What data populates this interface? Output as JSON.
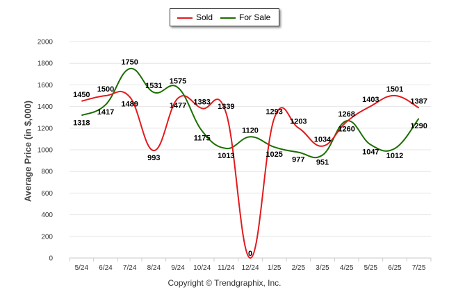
{
  "chart_data": {
    "type": "line",
    "ylabel": "Average Price (in $,000)",
    "xlabel": "",
    "ylim": [
      0,
      2000
    ],
    "yticks": [
      0,
      200,
      400,
      600,
      800,
      1000,
      1200,
      1400,
      1600,
      1800,
      2000
    ],
    "categories": [
      "5/24",
      "6/24",
      "7/24",
      "8/24",
      "9/24",
      "10/24",
      "11/24",
      "12/24",
      "1/25",
      "2/25",
      "3/25",
      "4/25",
      "5/25",
      "6/25",
      "7/25"
    ],
    "series": [
      {
        "name": "Sold",
        "color": "#e31a1c",
        "values": [
          1450,
          1500,
          1489,
          993,
          1477,
          1383,
          1339,
          0,
          1293,
          1203,
          1034,
          1260,
          1403,
          1501,
          1387
        ]
      },
      {
        "name": "For Sale",
        "color": "#1a6e00",
        "values": [
          1318,
          1417,
          1750,
          1531,
          1575,
          1175,
          1013,
          1120,
          1025,
          977,
          951,
          1268,
          1047,
          1012,
          1290
        ]
      }
    ],
    "legend_position": "top-center",
    "grid": true
  },
  "copyright": "Copyright © Trendgraphix, Inc."
}
